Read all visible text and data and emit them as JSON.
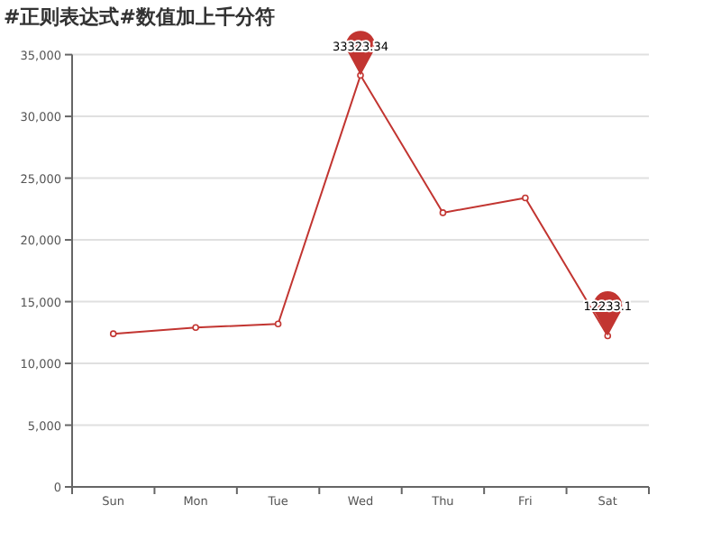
{
  "chart_data": {
    "type": "line",
    "title": "#正则表达式#数值加上千分符",
    "categories": [
      "Sun",
      "Mon",
      "Tue",
      "Wed",
      "Thu",
      "Fri",
      "Sat"
    ],
    "series": [
      {
        "color": "#c23531",
        "values": [
          12400,
          12900,
          13200,
          33323.34,
          22200,
          23400,
          12233.1
        ]
      }
    ],
    "ylim": [
      0,
      35000
    ],
    "yticks": [
      {
        "value": 0,
        "label": "0"
      },
      {
        "value": 5000,
        "label": "5,000"
      },
      {
        "value": 10000,
        "label": "10,000"
      },
      {
        "value": 15000,
        "label": "15,000"
      },
      {
        "value": 20000,
        "label": "20,000"
      },
      {
        "value": 25000,
        "label": "25,000"
      },
      {
        "value": 30000,
        "label": "30,000"
      },
      {
        "value": 35000,
        "label": "35,000"
      }
    ],
    "grid": "y",
    "marker": "circle",
    "line_style": "solid",
    "annotations": [
      {
        "text": "33323.34",
        "x": "Wed",
        "y": 33323.34
      },
      {
        "text": "12233.1",
        "x": "Sat",
        "y": 12233.1
      }
    ]
  }
}
